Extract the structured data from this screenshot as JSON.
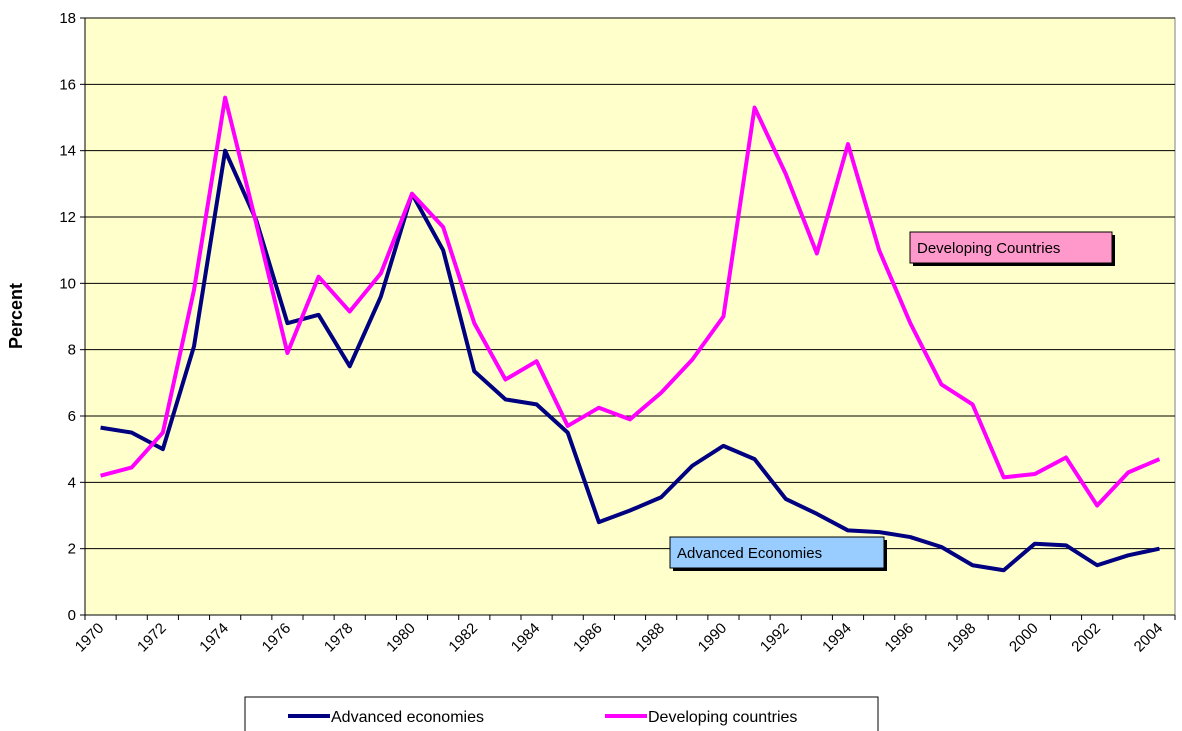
{
  "chart_data": {
    "type": "line",
    "y_label": "Percent",
    "categories": [
      "1970",
      null,
      "1972",
      null,
      "1974",
      null,
      "1976",
      null,
      "1978",
      null,
      "1980",
      null,
      "1982",
      null,
      "1984",
      null,
      "1986",
      null,
      "1988",
      null,
      "1990",
      null,
      "1992",
      null,
      "1994",
      null,
      "1996",
      null,
      "1998",
      null,
      "2000",
      null,
      "2002",
      null,
      "2004"
    ],
    "series": [
      {
        "name": "Advanced economies",
        "color": "#000080",
        "values": [
          5.65,
          5.5,
          5.0,
          8.1,
          14.0,
          11.9,
          8.8,
          9.05,
          7.5,
          9.6,
          12.7,
          11.0,
          7.35,
          6.5,
          6.35,
          5.5,
          2.8,
          3.15,
          3.55,
          4.5,
          5.1,
          4.7,
          3.5,
          3.05,
          2.55,
          2.5,
          2.35,
          2.05,
          1.5,
          1.35,
          2.15,
          2.1,
          1.5,
          1.8,
          2.0
        ]
      },
      {
        "name": "Developing countries",
        "color": "#ff00ff",
        "values": [
          4.2,
          4.45,
          5.5,
          9.8,
          15.6,
          11.8,
          7.9,
          10.2,
          9.15,
          10.3,
          12.7,
          11.7,
          8.8,
          7.1,
          7.65,
          5.7,
          6.25,
          5.9,
          6.7,
          7.7,
          9.0,
          15.3,
          13.3,
          10.9,
          14.2,
          11.0,
          8.8,
          6.95,
          6.35,
          4.15,
          4.25,
          4.75,
          3.3,
          4.3,
          4.7
        ]
      }
    ],
    "annotations": [
      {
        "text": "Developing Countries",
        "color": "#ff99cc"
      },
      {
        "text": "Advanced Economies",
        "color": "#99ccff"
      }
    ],
    "ylim": [
      0,
      18
    ],
    "yticks": [
      0,
      2,
      4,
      6,
      8,
      10,
      12,
      14,
      16,
      18
    ],
    "grid": true,
    "plot_background": "#ffffcc",
    "legend": "bottom"
  }
}
